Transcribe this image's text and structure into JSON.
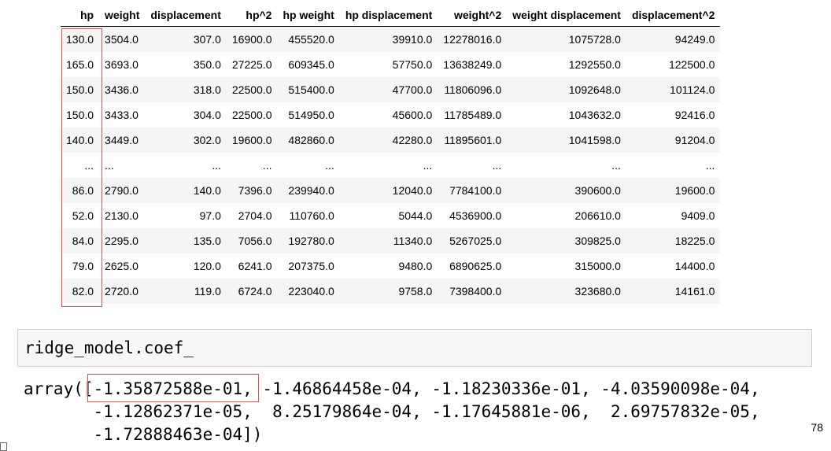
{
  "table": {
    "headers": [
      "hp",
      "weight",
      "displacement",
      "hp^2",
      "hp weight",
      "hp displacement",
      "weight^2",
      "weight displacement",
      "displacement^2"
    ],
    "rows": [
      [
        "130.0",
        "3504.0",
        "307.0",
        "16900.0",
        "455520.0",
        "39910.0",
        "12278016.0",
        "1075728.0",
        "94249.0"
      ],
      [
        "165.0",
        "3693.0",
        "350.0",
        "27225.0",
        "609345.0",
        "57750.0",
        "13638249.0",
        "1292550.0",
        "122500.0"
      ],
      [
        "150.0",
        "3436.0",
        "318.0",
        "22500.0",
        "515400.0",
        "47700.0",
        "11806096.0",
        "1092648.0",
        "101124.0"
      ],
      [
        "150.0",
        "3433.0",
        "304.0",
        "22500.0",
        "514950.0",
        "45600.0",
        "11785489.0",
        "1043632.0",
        "92416.0"
      ],
      [
        "140.0",
        "3449.0",
        "302.0",
        "19600.0",
        "482860.0",
        "42280.0",
        "11895601.0",
        "1041598.0",
        "91204.0"
      ],
      [
        "...",
        "...",
        "...",
        "...",
        "...",
        "...",
        "...",
        "...",
        "..."
      ],
      [
        "86.0",
        "2790.0",
        "140.0",
        "7396.0",
        "239940.0",
        "12040.0",
        "7784100.0",
        "390600.0",
        "19600.0"
      ],
      [
        "52.0",
        "2130.0",
        "97.0",
        "2704.0",
        "110760.0",
        "5044.0",
        "4536900.0",
        "206610.0",
        "9409.0"
      ],
      [
        "84.0",
        "2295.0",
        "135.0",
        "7056.0",
        "192780.0",
        "11340.0",
        "5267025.0",
        "309825.0",
        "18225.0"
      ],
      [
        "79.0",
        "2625.0",
        "120.0",
        "6241.0",
        "207375.0",
        "9480.0",
        "6890625.0",
        "315000.0",
        "14400.0"
      ],
      [
        "82.0",
        "2720.0",
        "119.0",
        "6724.0",
        "223040.0",
        "9758.0",
        "7398400.0",
        "323680.0",
        "14161.0"
      ]
    ]
  },
  "code_cell": {
    "source": "ridge_model.coef_"
  },
  "output": {
    "lines": [
      "array([-1.35872588e-01, -1.46864458e-04, -1.18230336e-01, -4.03590098e-04,",
      "       -1.12862371e-05,  8.25179864e-04, -1.17645881e-06,  2.69757832e-05,",
      "       -1.72888463e-04])"
    ]
  },
  "page_number": "78",
  "highlight_color": "#d9534f"
}
